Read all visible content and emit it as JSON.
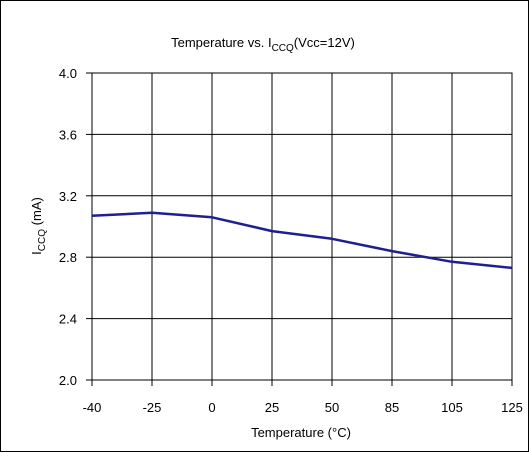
{
  "chart_data": {
    "type": "line",
    "title": "Temperature vs. I",
    "title_sub": "CCQ",
    "title_suffix": "(Vcc=12V)",
    "xlabel": "Temperature (°C)",
    "ylabel_main": "I",
    "ylabel_sub": "CCQ",
    "ylabel_suffix": " (mA)",
    "categories": [
      "-40",
      "-25",
      "0",
      "25",
      "50",
      "85",
      "105",
      "125"
    ],
    "yticks": [
      "2.0",
      "2.4",
      "2.8",
      "3.2",
      "3.6",
      "4.0"
    ],
    "ylim": [
      2.0,
      4.0
    ],
    "grid": true,
    "series": [
      {
        "color": "#1f1f8f",
        "points": [
          {
            "x": 0.0,
            "y": 3.07
          },
          {
            "x": 1.0,
            "y": 3.09
          },
          {
            "x": 2.0,
            "y": 3.06
          },
          {
            "x": 3.0,
            "y": 2.97
          },
          {
            "x": 4.0,
            "y": 2.92
          },
          {
            "x": 5.0,
            "y": 2.84
          },
          {
            "x": 6.0,
            "y": 2.77
          },
          {
            "x": 7.0,
            "y": 2.73
          }
        ]
      }
    ]
  }
}
